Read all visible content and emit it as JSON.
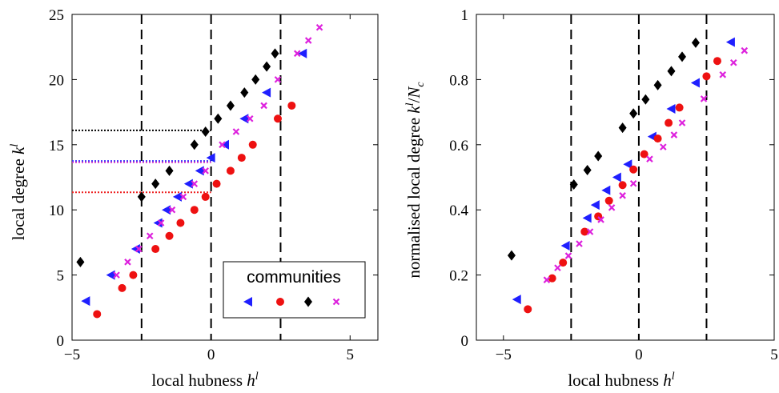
{
  "chart_data": [
    {
      "type": "scatter",
      "title": "",
      "xlabel": "local hubness",
      "xlabel_symbol": "h",
      "xlabel_sup": "l",
      "ylabel": "local degree",
      "ylabel_symbol": "k",
      "ylabel_sup": "l",
      "xlim": [
        -5,
        6
      ],
      "ylim": [
        0,
        25
      ],
      "xticks": [
        "−5",
        "0",
        "5"
      ],
      "yticks": [
        "0",
        "5",
        "10",
        "15",
        "20",
        "25"
      ],
      "xtick_values": [
        -5,
        0,
        5
      ],
      "ytick_values": [
        0,
        5,
        10,
        15,
        20,
        25
      ],
      "vlines": [
        -2.5,
        0,
        2.5
      ],
      "hlines": [
        {
          "y": 16.1,
          "xmax": 0,
          "color": "#000000"
        },
        {
          "y": 13.75,
          "xmax": 0,
          "color": "#3333ff"
        },
        {
          "y": 13.65,
          "xmax": 0,
          "color": "#cc33cc"
        },
        {
          "y": 11.35,
          "xmax": 0,
          "color": "#ee2222"
        }
      ],
      "legend": {
        "title": "communities",
        "placement": "bottom-right"
      },
      "series": [
        {
          "marker": "triangle-left",
          "color": "#1f1fff",
          "x": [
            -4.5,
            -3.6,
            -2.7,
            -1.9,
            -1.6,
            -1.2,
            -0.8,
            -0.4,
            0.0,
            0.5,
            1.2,
            2.0,
            3.3
          ],
          "y": [
            3,
            5,
            7,
            9,
            10,
            11,
            12,
            13,
            14,
            15,
            17,
            19,
            22
          ]
        },
        {
          "marker": "circle",
          "color": "#ee1111",
          "x": [
            -4.1,
            -3.2,
            -2.8,
            -2.0,
            -1.5,
            -1.1,
            -0.6,
            -0.2,
            0.2,
            0.7,
            1.1,
            1.5,
            2.4,
            2.9
          ],
          "y": [
            2,
            4,
            5,
            7,
            8,
            9,
            10,
            11,
            12,
            13,
            14,
            15,
            17,
            18
          ]
        },
        {
          "marker": "diamond",
          "color": "#000000",
          "x": [
            -4.7,
            -2.5,
            -2.0,
            -1.5,
            -0.6,
            -0.2,
            0.25,
            0.7,
            1.2,
            1.6,
            2.0,
            2.3
          ],
          "y": [
            6,
            11,
            12,
            13,
            15,
            16,
            17,
            18,
            19,
            20,
            21,
            22
          ]
        },
        {
          "marker": "cross",
          "color": "#dd22dd",
          "x": [
            -3.4,
            -3.0,
            -2.6,
            -2.2,
            -1.8,
            -1.4,
            -1.0,
            -0.6,
            -0.2,
            0.4,
            0.9,
            1.4,
            1.9,
            2.4,
            3.1,
            3.5,
            3.9
          ],
          "y": [
            5,
            6,
            7,
            8,
            9,
            10,
            11,
            12,
            13,
            15,
            16,
            17,
            18,
            20,
            22,
            23,
            24
          ]
        }
      ]
    },
    {
      "type": "scatter",
      "title": "",
      "xlabel": "local hubness",
      "xlabel_symbol": "h",
      "xlabel_sup": "l",
      "ylabel": "normalised local degree",
      "ylabel_symbol": "k",
      "ylabel_sup": "l",
      "ylabel_denominator": "N",
      "ylabel_denominator_sub": "c",
      "xlim": [
        -6,
        5
      ],
      "ylim": [
        0,
        1
      ],
      "xticks": [
        "−5",
        "0",
        "5"
      ],
      "yticks": [
        "0",
        "0.2",
        "0.4",
        "0.6",
        "0.8",
        "1"
      ],
      "xtick_values": [
        -5,
        0,
        5
      ],
      "ytick_values": [
        0,
        0.2,
        0.4,
        0.6,
        0.8,
        1
      ],
      "vlines": [
        -2.5,
        0,
        2.5
      ],
      "series": [
        {
          "marker": "triangle-left",
          "color": "#1f1fff",
          "x": [
            -4.5,
            -2.7,
            -1.9,
            -1.6,
            -1.2,
            -0.8,
            -0.4,
            0.5,
            1.2,
            2.1,
            3.4
          ],
          "y": [
            0.125,
            0.29,
            0.375,
            0.415,
            0.46,
            0.5,
            0.54,
            0.625,
            0.71,
            0.79,
            0.915
          ]
        },
        {
          "marker": "circle",
          "color": "#ee1111",
          "x": [
            -4.1,
            -3.2,
            -2.8,
            -2.0,
            -1.5,
            -1.1,
            -0.6,
            -0.2,
            0.2,
            0.7,
            1.1,
            1.5,
            2.5,
            2.9
          ],
          "y": [
            0.095,
            0.19,
            0.238,
            0.333,
            0.38,
            0.428,
            0.476,
            0.524,
            0.571,
            0.619,
            0.667,
            0.714,
            0.81,
            0.857
          ]
        },
        {
          "marker": "diamond",
          "color": "#000000",
          "x": [
            -4.7,
            -2.4,
            -1.9,
            -1.5,
            -0.6,
            -0.2,
            0.25,
            0.7,
            1.2,
            1.6,
            2.1
          ],
          "y": [
            0.26,
            0.478,
            0.522,
            0.565,
            0.652,
            0.696,
            0.739,
            0.783,
            0.826,
            0.87,
            0.913
          ]
        },
        {
          "marker": "cross",
          "color": "#dd22dd",
          "x": [
            -3.4,
            -3.0,
            -2.6,
            -2.2,
            -1.8,
            -1.4,
            -1.0,
            -0.6,
            -0.2,
            0.4,
            0.9,
            1.3,
            1.6,
            2.4,
            3.1,
            3.5,
            3.9
          ],
          "y": [
            0.185,
            0.222,
            0.259,
            0.296,
            0.333,
            0.37,
            0.407,
            0.444,
            0.481,
            0.556,
            0.593,
            0.63,
            0.667,
            0.741,
            0.815,
            0.852,
            0.889
          ]
        }
      ]
    }
  ]
}
